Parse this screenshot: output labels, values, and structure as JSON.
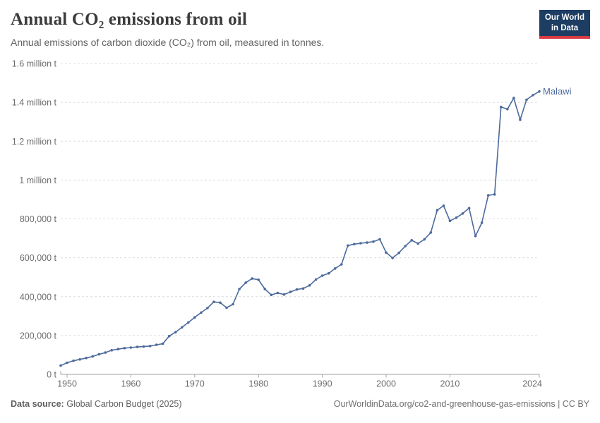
{
  "header": {
    "title": "Annual CO₂ emissions from oil",
    "subtitle": "Annual emissions of carbon dioxide (CO₂) from oil, measured in tonnes."
  },
  "logo": {
    "line1": "Our World",
    "line2": "in Data",
    "bg_color": "#1d3d63",
    "accent_color": "#d73a42"
  },
  "footer": {
    "source_label": "Data source:",
    "source_value": "Global Carbon Budget (2025)",
    "citation": "OurWorldinData.org/co2-and-greenhouse-gas-emissions | CC BY"
  },
  "chart_data": {
    "type": "line",
    "title": "Annual CO₂ emissions from oil",
    "entity": "Malawi",
    "unit": "t",
    "line_color": "#4C6A9C",
    "grid_color": "#dcdcdc",
    "axis_color": "#a3a3a3",
    "grid": "horizontal dashed gridlines",
    "legend_position": "label at end of line",
    "xlim": [
      1949,
      2024
    ],
    "ylim": [
      0,
      1600000
    ],
    "xticks": [
      1950,
      1960,
      1970,
      1980,
      1990,
      2000,
      2010,
      2024
    ],
    "yticks": [
      {
        "value": 0,
        "label": "0 t"
      },
      {
        "value": 200000,
        "label": "200,000 t"
      },
      {
        "value": 400000,
        "label": "400,000 t"
      },
      {
        "value": 600000,
        "label": "600,000 t"
      },
      {
        "value": 800000,
        "label": "800,000 t"
      },
      {
        "value": 1000000,
        "label": "1 million t"
      },
      {
        "value": 1200000,
        "label": "1.2 million t"
      },
      {
        "value": 1400000,
        "label": "1.4 million t"
      },
      {
        "value": 1600000,
        "label": "1.6 million t"
      }
    ],
    "years": [
      1949,
      1950,
      1951,
      1952,
      1953,
      1954,
      1955,
      1956,
      1957,
      1958,
      1959,
      1960,
      1961,
      1962,
      1963,
      1964,
      1965,
      1966,
      1967,
      1968,
      1969,
      1970,
      1971,
      1972,
      1973,
      1974,
      1975,
      1976,
      1977,
      1978,
      1979,
      1980,
      1981,
      1982,
      1983,
      1984,
      1985,
      1986,
      1987,
      1988,
      1989,
      1990,
      1991,
      1992,
      1993,
      1994,
      1995,
      1996,
      1997,
      1998,
      1999,
      2000,
      2001,
      2002,
      2003,
      2004,
      2005,
      2006,
      2007,
      2008,
      2009,
      2010,
      2011,
      2012,
      2013,
      2014,
      2015,
      2016,
      2017,
      2018,
      2019,
      2020,
      2021,
      2022,
      2023,
      2024
    ],
    "values": [
      45000,
      60000,
      70000,
      77000,
      84000,
      92000,
      103000,
      112000,
      124000,
      130000,
      135000,
      138000,
      141000,
      143000,
      146000,
      152000,
      158000,
      197000,
      217000,
      242000,
      267000,
      293000,
      318000,
      341000,
      373000,
      369000,
      343000,
      361000,
      439000,
      472000,
      493000,
      487000,
      439000,
      409000,
      419000,
      411000,
      424000,
      437000,
      442000,
      458000,
      488000,
      508000,
      520000,
      545000,
      566000,
      663000,
      670000,
      675000,
      678000,
      683000,
      695000,
      627000,
      599000,
      625000,
      660000,
      690000,
      673000,
      695000,
      730000,
      845000,
      868000,
      790000,
      806000,
      828000,
      855000,
      712000,
      780000,
      921000,
      926000,
      1376000,
      1365000,
      1422000,
      1310000,
      1413000,
      1437000,
      1456000
    ]
  }
}
